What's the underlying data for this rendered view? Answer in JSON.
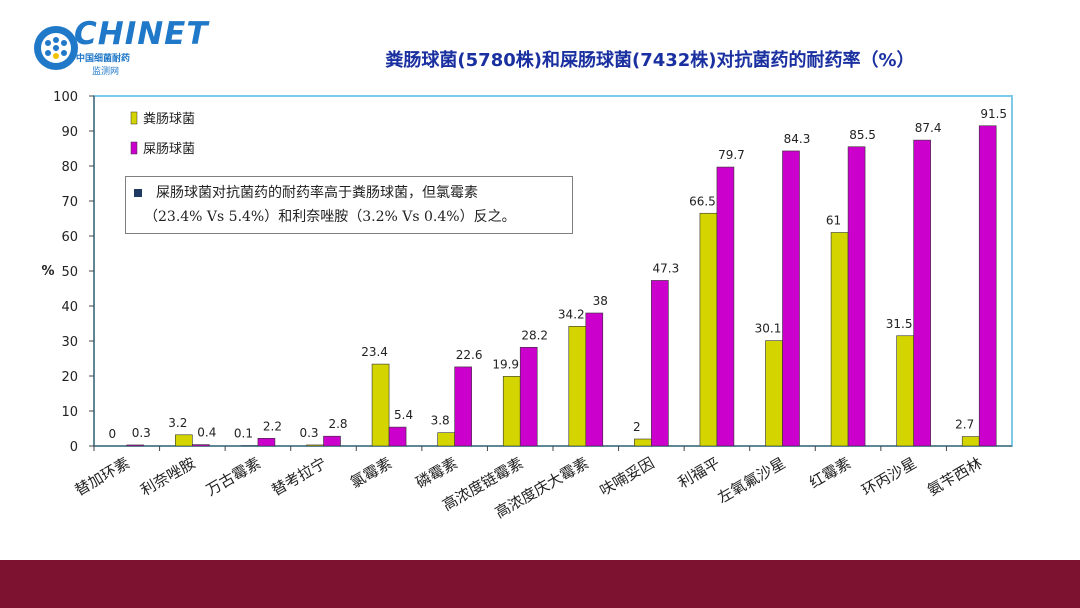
{
  "logo": {
    "word": "CHINET",
    "line1": "中国细菌耐药",
    "line2": "监测网",
    "colors": {
      "blue": "#1f78c8",
      "yellow": "#f2c400"
    }
  },
  "chart_data": {
    "type": "bar",
    "title": "粪肠球菌(5780株)和屎肠球菌(7432株)对抗菌药的耐药率（%）",
    "ylabel": "%",
    "xlabel": "",
    "ylim": [
      0,
      100
    ],
    "yticks": [
      0,
      10,
      20,
      30,
      40,
      50,
      60,
      70,
      80,
      90,
      100
    ],
    "grid": false,
    "legend_position": "top-left",
    "categories": [
      "替加环素",
      "利奈唑胺",
      "万古霉素",
      "替考拉宁",
      "氯霉素",
      "磷霉素",
      "高浓度链霉素",
      "高浓度庆大霉素",
      "呋喃妥因",
      "利福平",
      "左氧氟沙星",
      "红霉素",
      "环丙沙星",
      "氨苄西林"
    ],
    "series": [
      {
        "name": "粪肠球菌",
        "color": "#d4d400",
        "values": [
          0,
          3.2,
          0.1,
          0.3,
          23.4,
          3.8,
          19.9,
          34.2,
          2,
          66.5,
          30.1,
          61,
          31.5,
          2.7
        ],
        "labels": [
          "0",
          "3.2",
          "0.1",
          "0.3",
          "23.4",
          "3.8",
          "19.9",
          "34.2",
          "2",
          "66.5",
          "30.1",
          "61",
          "31.5",
          "2.7"
        ]
      },
      {
        "name": "屎肠球菌",
        "color": "#cc00cc",
        "values": [
          0.3,
          0.4,
          2.2,
          2.8,
          5.4,
          22.6,
          28.2,
          38,
          47.3,
          79.7,
          84.3,
          85.5,
          87.4,
          91.5
        ],
        "labels": [
          "0.3",
          "0.4",
          "2.2",
          "2.8",
          "5.4",
          "22.6",
          "28.2",
          "38",
          "47.3",
          "79.7",
          "84.3",
          "85.5",
          "87.4",
          "91.5"
        ]
      }
    ],
    "annotation": {
      "line1": "屎肠球菌对抗菌药的耐药率高于粪肠球菌，但氯霉素",
      "line2": "（23.4% Vs 5.4%）和利奈唑胺（3.2% Vs 0.4%）反之。"
    }
  },
  "colors": {
    "title": "#1a30a0",
    "footer": "#7d1130",
    "plot_border": "#7ec8e8"
  }
}
